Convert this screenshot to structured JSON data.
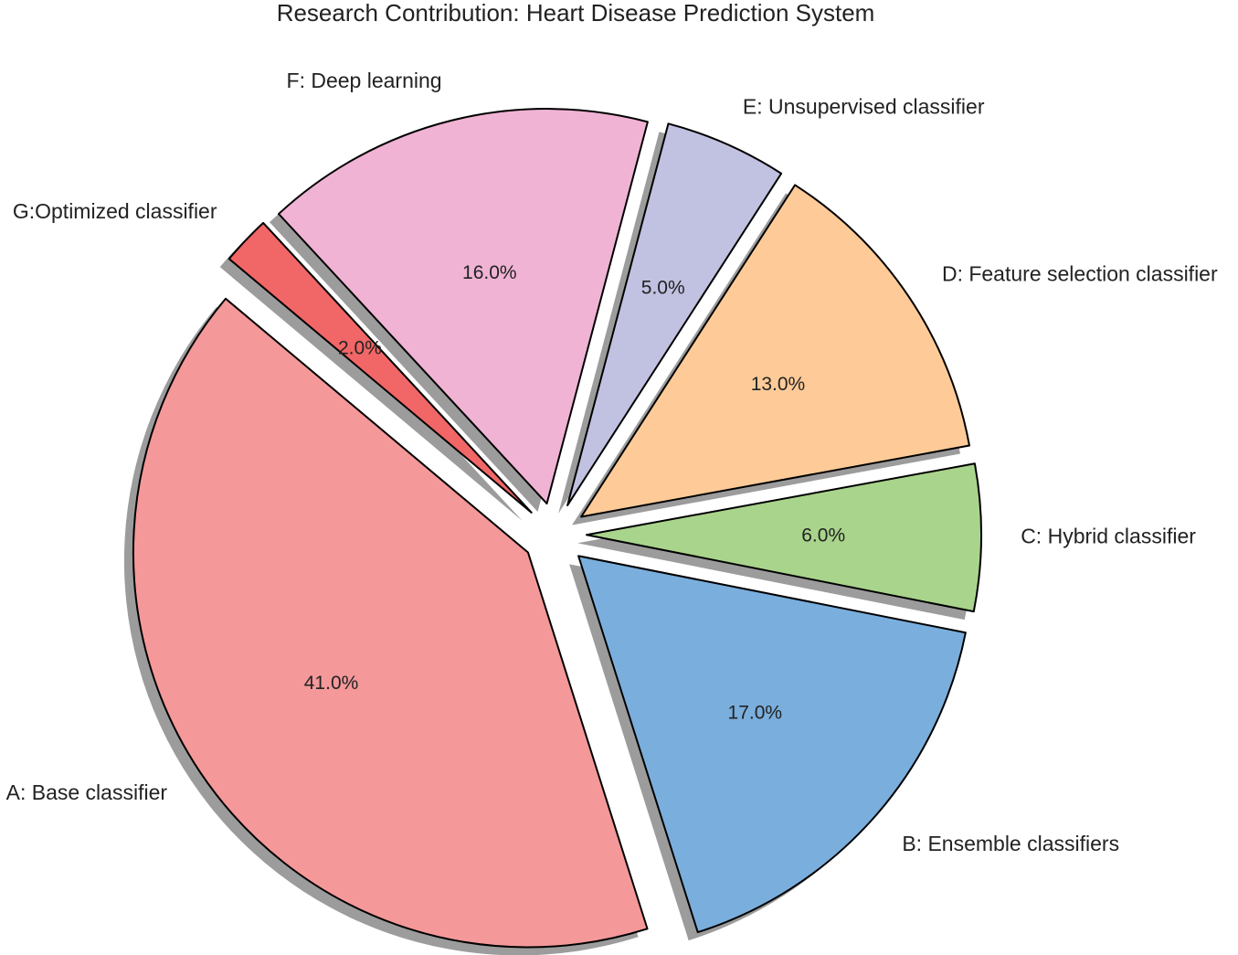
{
  "chart_data": {
    "type": "pie",
    "title": "Research Contribution: Heart Disease Prediction System",
    "start_angle_deg": 140,
    "direction": "counterclockwise",
    "shadow": true,
    "exploded": true,
    "slices": [
      {
        "label": "A: Base classifier",
        "value": 41.0,
        "pct_label": "41.0%",
        "color": "#f4989a"
      },
      {
        "label": "B: Ensemble classifiers",
        "value": 17.0,
        "pct_label": "17.0%",
        "color": "#7aaedd"
      },
      {
        "label": "C: Hybrid classifier",
        "value": 6.0,
        "pct_label": "6.0%",
        "color": "#a9d48c"
      },
      {
        "label": "D: Feature selection classifier",
        "value": 13.0,
        "pct_label": "13.0%",
        "color": "#fecb98"
      },
      {
        "label": "E: Unsupervised classifier",
        "value": 5.0,
        "pct_label": "5.0%",
        "color": "#c1c1e1"
      },
      {
        "label": "F: Deep learning",
        "value": 16.0,
        "pct_label": "16.0%",
        "color": "#f0b3d4"
      },
      {
        "label": "G:Optimized classifier",
        "value": 2.0,
        "pct_label": "2.0%",
        "color": "#f16667"
      }
    ]
  }
}
